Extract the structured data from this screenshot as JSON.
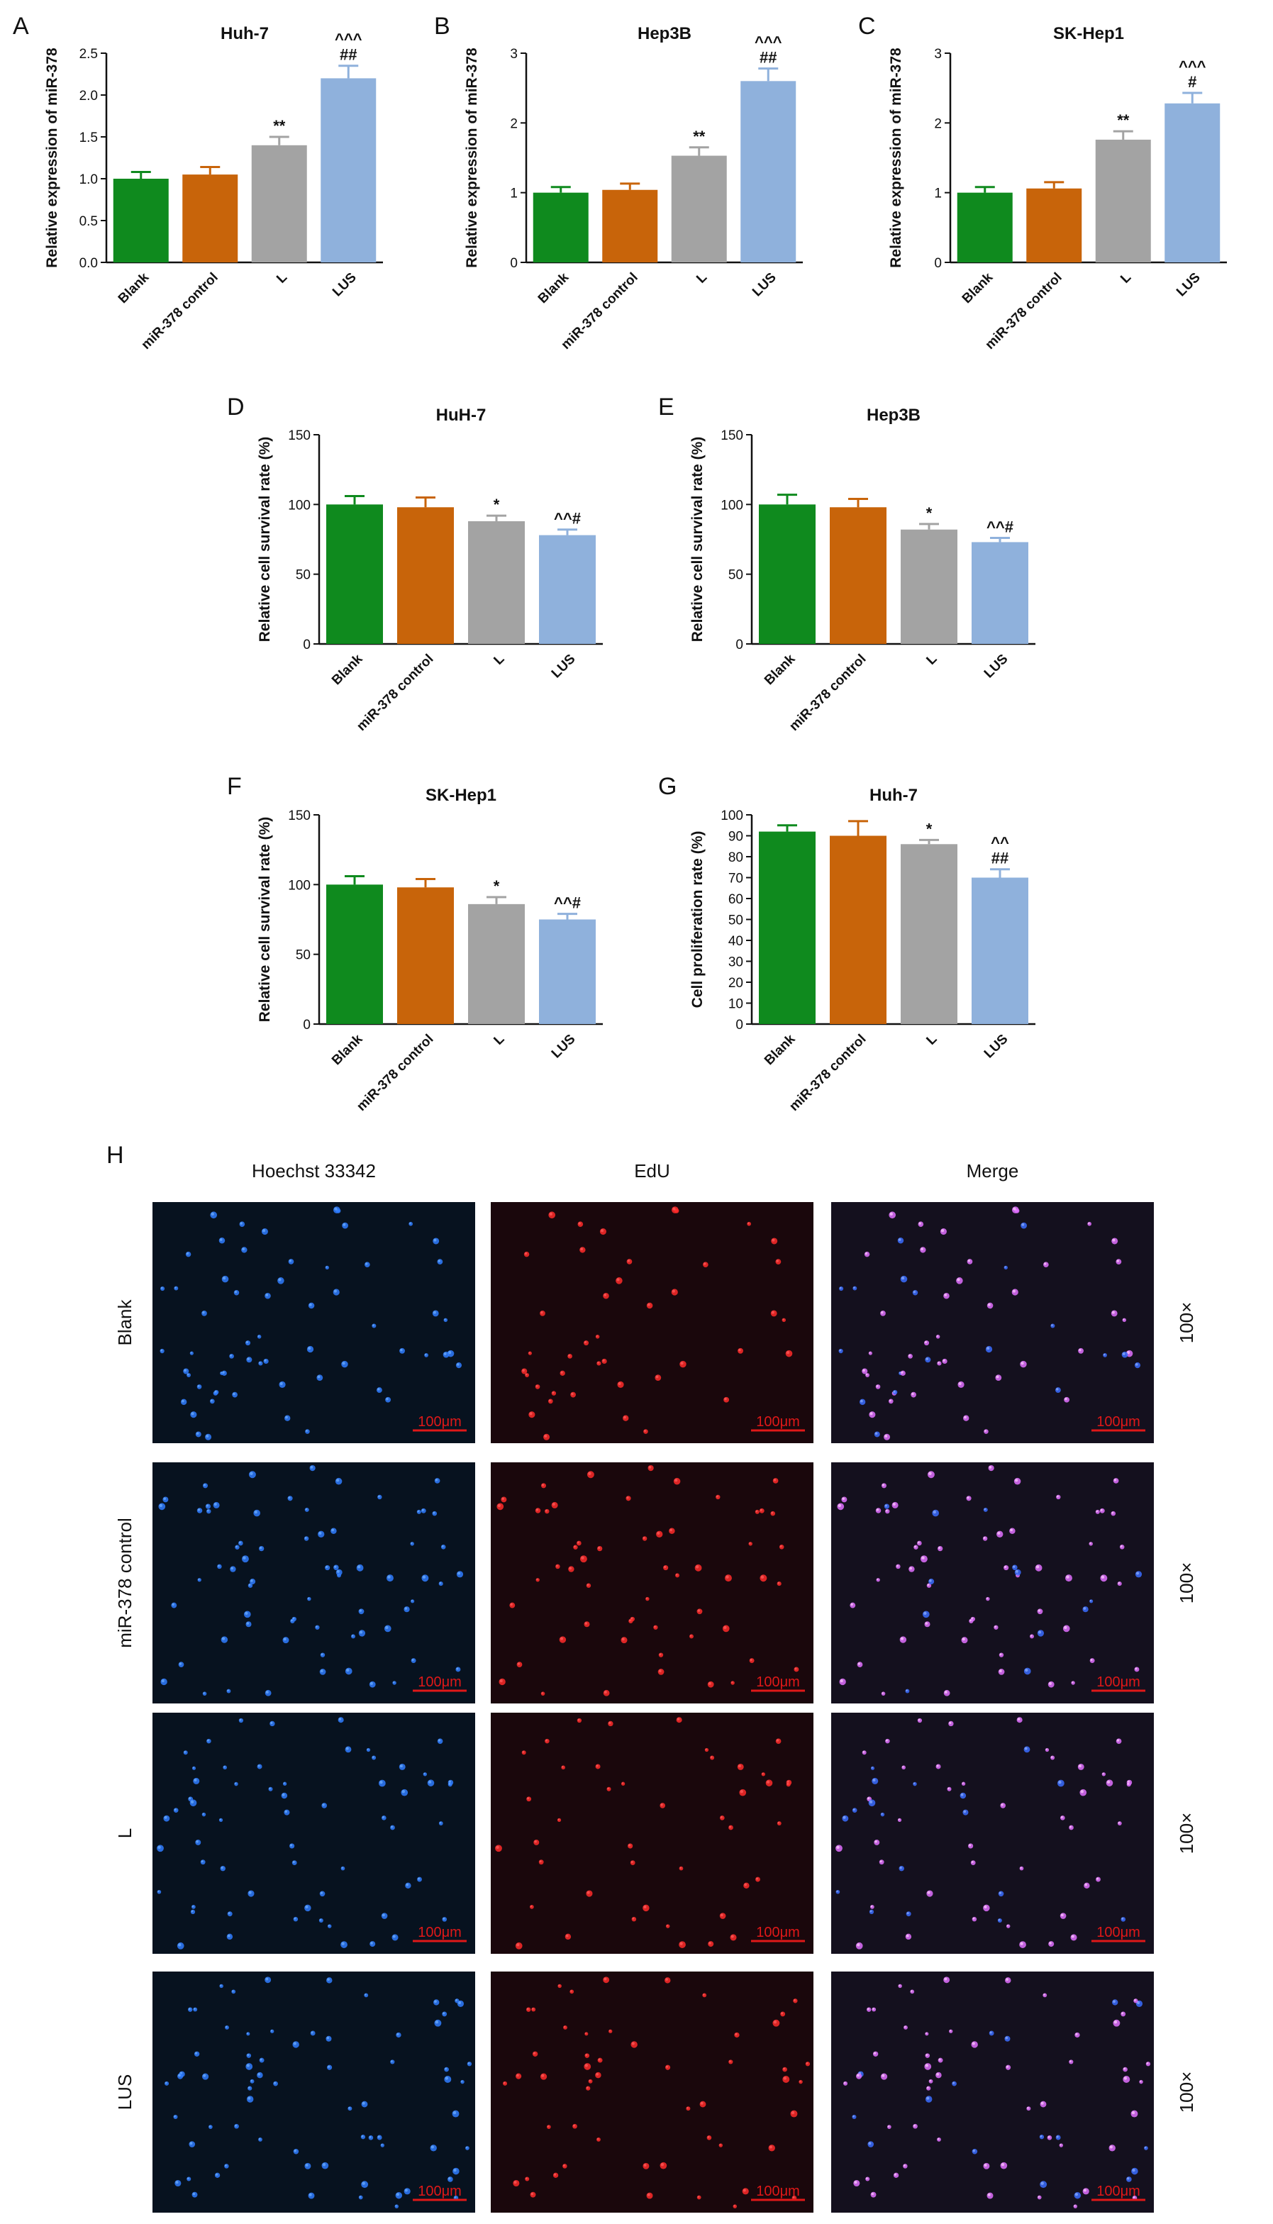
{
  "colors": {
    "blank": "#0f8a1e",
    "mir378_control": "#c8640a",
    "L": "#a3a3a3",
    "LUS": "#8fb1dc",
    "scale_bar": "#e01818"
  },
  "chart_data": [
    {
      "panel": "A",
      "type": "bar",
      "title": "Huh-7",
      "xlabel": "",
      "ylabel": "Relative expression of miR-378",
      "categories": [
        "Blank",
        "miR-378 control",
        "L",
        "LUS"
      ],
      "values": [
        1.0,
        1.05,
        1.4,
        2.2
      ],
      "errors": [
        0.08,
        0.09,
        0.1,
        0.15
      ],
      "ylim": [
        0,
        2.5
      ],
      "yticks": [
        "0.0",
        "0.5",
        "1.0",
        "1.5",
        "2.0",
        "2.5"
      ],
      "annotations": [
        "",
        "",
        "**",
        "^^^\n##"
      ]
    },
    {
      "panel": "B",
      "type": "bar",
      "title": "Hep3B",
      "xlabel": "",
      "ylabel": "Relative expression of miR-378",
      "categories": [
        "Blank",
        "miR-378 control",
        "L",
        "LUS"
      ],
      "values": [
        1.0,
        1.04,
        1.53,
        2.6
      ],
      "errors": [
        0.08,
        0.09,
        0.12,
        0.18
      ],
      "ylim": [
        0,
        3
      ],
      "yticks": [
        "0",
        "1",
        "2",
        "3"
      ],
      "annotations": [
        "",
        "",
        "**",
        "^^^\n##"
      ]
    },
    {
      "panel": "C",
      "type": "bar",
      "title": "SK-Hep1",
      "xlabel": "",
      "ylabel": "Relative expression of miR-378",
      "categories": [
        "Blank",
        "miR-378 control",
        "L",
        "LUS"
      ],
      "values": [
        1.0,
        1.06,
        1.76,
        2.28
      ],
      "errors": [
        0.08,
        0.09,
        0.12,
        0.15
      ],
      "ylim": [
        0,
        3
      ],
      "yticks": [
        "0",
        "1",
        "2",
        "3"
      ],
      "annotations": [
        "",
        "",
        "**",
        "^^^\n#"
      ]
    },
    {
      "panel": "D",
      "type": "bar",
      "title": "HuH-7",
      "xlabel": "",
      "ylabel": "Relative cell survival rate (%)",
      "categories": [
        "Blank",
        "miR-378 control",
        "L",
        "LUS"
      ],
      "values": [
        100,
        98,
        88,
        78
      ],
      "errors": [
        6,
        7,
        4,
        4
      ],
      "ylim": [
        0,
        150
      ],
      "yticks": [
        "0",
        "50",
        "100",
        "150"
      ],
      "annotations": [
        "",
        "",
        "*",
        "^^#"
      ]
    },
    {
      "panel": "E",
      "type": "bar",
      "title": "Hep3B",
      "xlabel": "",
      "ylabel": "Relative cell survival rate (%)",
      "categories": [
        "Blank",
        "miR-378 control",
        "L",
        "LUS"
      ],
      "values": [
        100,
        98,
        82,
        73
      ],
      "errors": [
        7,
        6,
        4,
        3
      ],
      "ylim": [
        0,
        150
      ],
      "yticks": [
        "0",
        "50",
        "100",
        "150"
      ],
      "annotations": [
        "",
        "",
        "*",
        "^^#"
      ]
    },
    {
      "panel": "F",
      "type": "bar",
      "title": "SK-Hep1",
      "xlabel": "",
      "ylabel": "Relative cell survival rate (%)",
      "categories": [
        "Blank",
        "miR-378 control",
        "L",
        "LUS"
      ],
      "values": [
        100,
        98,
        86,
        75
      ],
      "errors": [
        6,
        6,
        5,
        4
      ],
      "ylim": [
        0,
        150
      ],
      "yticks": [
        "0",
        "50",
        "100",
        "150"
      ],
      "annotations": [
        "",
        "",
        "*",
        "^^#"
      ]
    },
    {
      "panel": "G",
      "type": "bar",
      "title": "Huh-7",
      "xlabel": "",
      "ylabel": "Cell proliferation rate (%)",
      "categories": [
        "Blank",
        "miR-378 control",
        "L",
        "LUS"
      ],
      "values": [
        92,
        90,
        86,
        70
      ],
      "errors": [
        3,
        7,
        2,
        4
      ],
      "ylim": [
        0,
        100
      ],
      "yticks": [
        "0",
        "10",
        "20",
        "30",
        "40",
        "50",
        "60",
        "70",
        "80",
        "90",
        "100"
      ],
      "annotations": [
        "",
        "",
        "*",
        "^^\n##"
      ]
    }
  ],
  "micrographs": {
    "panel": "H",
    "columns": [
      "Hoechst 33342",
      "EdU",
      "Merge"
    ],
    "rows": [
      "Blank",
      "miR-378 control",
      "L",
      "LUS"
    ],
    "magnification": "100×",
    "scale_bar": "100μm"
  }
}
